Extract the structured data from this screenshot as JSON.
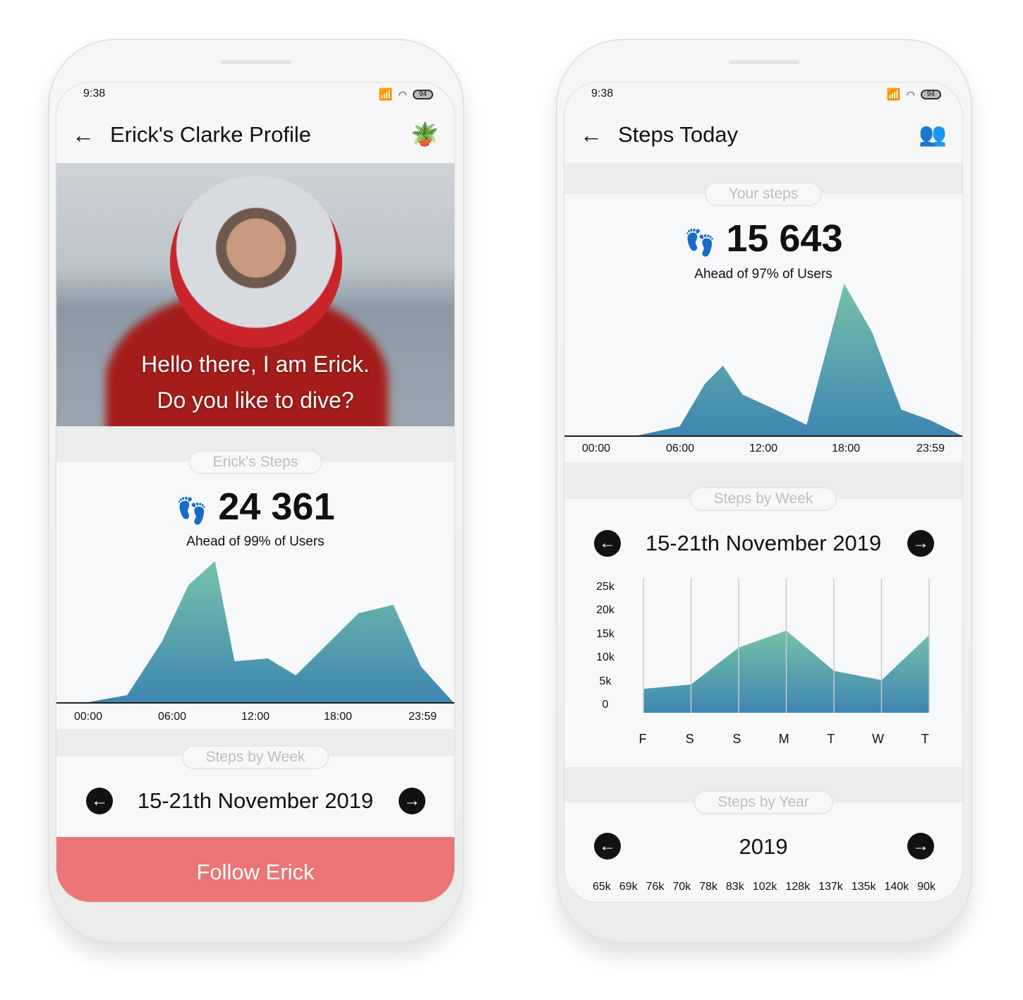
{
  "colors": {
    "accent": "#ec7575",
    "area_top": "#76c1ab",
    "area_bottom": "#3e86b0"
  },
  "status": {
    "time": "9:38",
    "battery": "94"
  },
  "profile": {
    "title": "Erick's Clarke Profile",
    "greeting_line1": "Hello there, I am Erick.",
    "greeting_line2": "Do you like to dive?",
    "steps_label": "Erick's Steps",
    "steps": "24 361",
    "ahead": "Ahead of 99% of Users",
    "week_label": "Steps by Week",
    "week_range": "15-21th November 2019",
    "follow": "Follow Erick"
  },
  "today": {
    "title": "Steps Today",
    "steps_label": "Your steps",
    "steps": "15 643",
    "ahead": "Ahead of 97% of Users",
    "week_label": "Steps by Week",
    "week_range": "15-21th November 2019",
    "year_label": "Steps by Year",
    "year": "2019",
    "year_values": [
      "65k",
      "69k",
      "76k",
      "70k",
      "78k",
      "83k",
      "102k",
      "128k",
      "137k",
      "135k",
      "140k",
      "90k"
    ]
  },
  "chart_data": [
    {
      "type": "area",
      "name": "profile-daily",
      "x_ticks": [
        "00:00",
        "06:00",
        "12:00",
        "18:00",
        "23:59"
      ],
      "points": [
        [
          0,
          0
        ],
        [
          2.8,
          5
        ],
        [
          5.3,
          43
        ],
        [
          7.2,
          83
        ],
        [
          9.1,
          100
        ],
        [
          10.5,
          29
        ],
        [
          12.9,
          31
        ],
        [
          14.9,
          19
        ],
        [
          19.4,
          63
        ],
        [
          21.9,
          69
        ],
        [
          23.9,
          25
        ],
        [
          26.2,
          0
        ]
      ]
    },
    {
      "type": "area",
      "name": "today-daily",
      "x_ticks": [
        "00:00",
        "06:00",
        "12:00",
        "18:00",
        "23:59"
      ],
      "points": [
        [
          3,
          0
        ],
        [
          6,
          6
        ],
        [
          7.8,
          34
        ],
        [
          9.1,
          46
        ],
        [
          10.5,
          27
        ],
        [
          13.1,
          16
        ],
        [
          15.1,
          7
        ],
        [
          17.8,
          100
        ],
        [
          19.8,
          68
        ],
        [
          21.9,
          17
        ],
        [
          24,
          10
        ],
        [
          26.2,
          0
        ]
      ]
    },
    {
      "type": "area",
      "name": "week",
      "categories": [
        "F",
        "S",
        "S",
        "M",
        "T",
        "W",
        "T"
      ],
      "values": [
        4.2,
        5.1,
        12.7,
        16.2,
        7.9,
        6.0,
        15.3
      ],
      "y_ticks": [
        "25k",
        "20k",
        "15k",
        "10k",
        "5k",
        "0"
      ],
      "ylim": [
        0,
        25
      ],
      "grid": "vertical"
    }
  ]
}
